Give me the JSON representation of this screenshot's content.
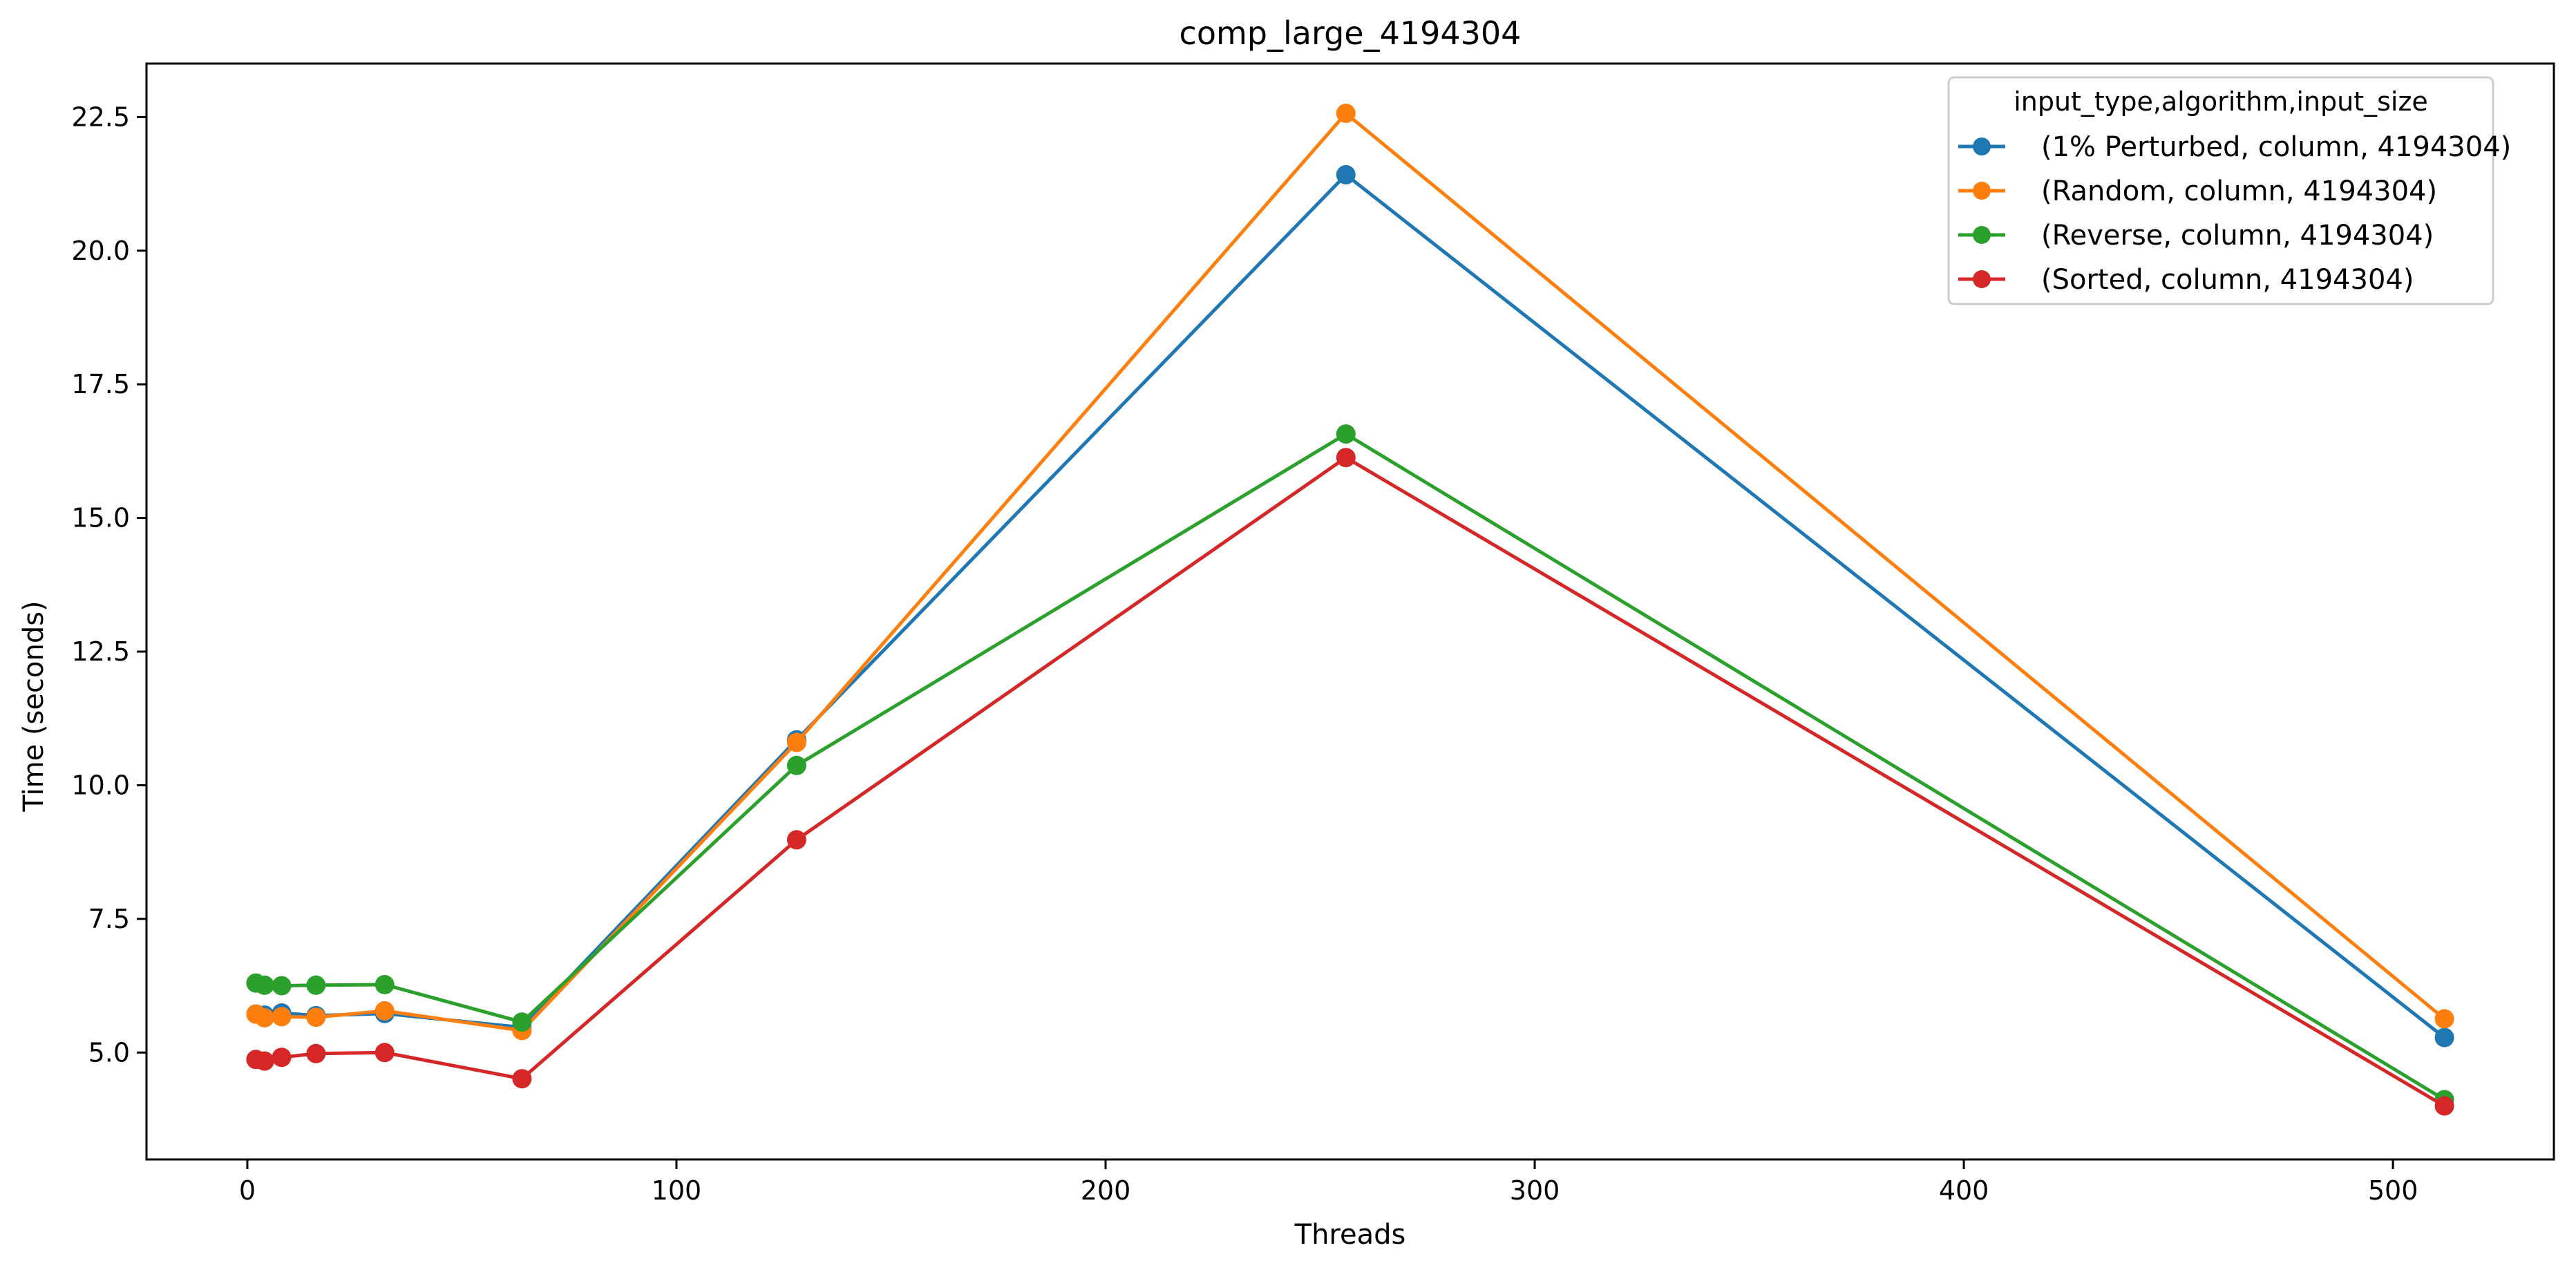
{
  "chart_data": {
    "type": "line",
    "title": "comp_large_4194304",
    "xlabel": "Threads",
    "ylabel": "Time (seconds)",
    "xlim": [
      -23.5,
      537.5
    ],
    "ylim": [
      3.0,
      23.5
    ],
    "xticks": [
      0,
      100,
      200,
      300,
      400,
      500
    ],
    "yticks": [
      5.0,
      7.5,
      10.0,
      12.5,
      15.0,
      17.5,
      20.0,
      22.5
    ],
    "grid": false,
    "legend": {
      "title": "input_type,algorithm,input_size",
      "placement": "top-right"
    },
    "x": [
      2,
      4,
      8,
      16,
      32,
      64,
      128,
      256,
      512
    ],
    "series": [
      {
        "name": "(1% Perturbed, column, 4194304)",
        "color": "#1f77b4",
        "values": [
          5.72,
          5.7,
          5.74,
          5.69,
          5.73,
          5.47,
          10.85,
          21.42,
          5.28
        ]
      },
      {
        "name": "(Random, column, 4194304)",
        "color": "#ff7f0e",
        "values": [
          5.72,
          5.65,
          5.67,
          5.66,
          5.78,
          5.41,
          10.8,
          22.57,
          5.63
        ]
      },
      {
        "name": "(Reverse, column, 4194304)",
        "color": "#2ca02c",
        "values": [
          6.3,
          6.26,
          6.25,
          6.26,
          6.27,
          5.57,
          10.37,
          16.57,
          4.12
        ]
      },
      {
        "name": "(Sorted, column, 4194304)",
        "color": "#d62728",
        "values": [
          4.87,
          4.84,
          4.91,
          4.98,
          5.0,
          4.51,
          8.98,
          16.13,
          4.0
        ]
      }
    ]
  }
}
